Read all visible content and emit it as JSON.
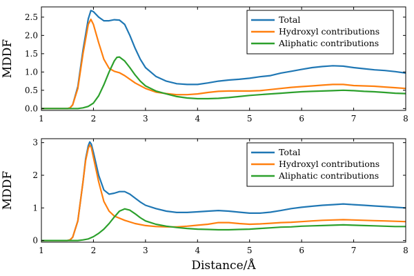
{
  "chart_data": [
    {
      "type": "line",
      "title": "",
      "xlabel": "",
      "ylabel": "MDDF",
      "xlim": [
        1,
        8
      ],
      "ylim": [
        -0.05,
        2.78
      ],
      "xticks": [
        "1",
        "2",
        "3",
        "4",
        "5",
        "6",
        "7",
        "8"
      ],
      "yticks": [
        "0.0",
        "0.5",
        "1.0",
        "1.5",
        "2.0",
        "2.5"
      ],
      "grid": false,
      "legend_position": "top-right",
      "series": [
        {
          "name": "Total",
          "color": "#1f77b4",
          "points": [
            [
              1.0,
              0.0
            ],
            [
              1.5,
              0.0
            ],
            [
              1.55,
              0.02
            ],
            [
              1.6,
              0.1
            ],
            [
              1.7,
              0.6
            ],
            [
              1.8,
              1.6
            ],
            [
              1.9,
              2.45
            ],
            [
              1.95,
              2.68
            ],
            [
              2.0,
              2.65
            ],
            [
              2.1,
              2.5
            ],
            [
              2.2,
              2.4
            ],
            [
              2.3,
              2.4
            ],
            [
              2.4,
              2.43
            ],
            [
              2.5,
              2.42
            ],
            [
              2.6,
              2.3
            ],
            [
              2.7,
              2.0
            ],
            [
              2.8,
              1.65
            ],
            [
              2.9,
              1.35
            ],
            [
              3.0,
              1.12
            ],
            [
              3.2,
              0.88
            ],
            [
              3.4,
              0.75
            ],
            [
              3.6,
              0.68
            ],
            [
              3.8,
              0.66
            ],
            [
              4.0,
              0.66
            ],
            [
              4.2,
              0.7
            ],
            [
              4.4,
              0.75
            ],
            [
              4.6,
              0.78
            ],
            [
              4.8,
              0.8
            ],
            [
              5.0,
              0.83
            ],
            [
              5.2,
              0.87
            ],
            [
              5.4,
              0.9
            ],
            [
              5.6,
              0.97
            ],
            [
              5.8,
              1.02
            ],
            [
              6.0,
              1.07
            ],
            [
              6.2,
              1.12
            ],
            [
              6.4,
              1.15
            ],
            [
              6.6,
              1.17
            ],
            [
              6.8,
              1.16
            ],
            [
              7.0,
              1.12
            ],
            [
              7.2,
              1.09
            ],
            [
              7.4,
              1.06
            ],
            [
              7.6,
              1.04
            ],
            [
              7.8,
              1.01
            ],
            [
              8.0,
              0.97
            ]
          ]
        },
        {
          "name": "Hydroxyl contributions",
          "color": "#ff7f0e",
          "points": [
            [
              1.0,
              0.0
            ],
            [
              1.5,
              0.0
            ],
            [
              1.55,
              0.02
            ],
            [
              1.6,
              0.1
            ],
            [
              1.7,
              0.55
            ],
            [
              1.8,
              1.5
            ],
            [
              1.9,
              2.3
            ],
            [
              1.95,
              2.44
            ],
            [
              2.0,
              2.3
            ],
            [
              2.1,
              1.8
            ],
            [
              2.2,
              1.35
            ],
            [
              2.3,
              1.1
            ],
            [
              2.4,
              1.02
            ],
            [
              2.5,
              0.98
            ],
            [
              2.6,
              0.9
            ],
            [
              2.8,
              0.7
            ],
            [
              3.0,
              0.55
            ],
            [
              3.2,
              0.45
            ],
            [
              3.4,
              0.41
            ],
            [
              3.6,
              0.38
            ],
            [
              3.8,
              0.38
            ],
            [
              4.0,
              0.4
            ],
            [
              4.2,
              0.44
            ],
            [
              4.4,
              0.47
            ],
            [
              4.6,
              0.48
            ],
            [
              4.8,
              0.48
            ],
            [
              5.0,
              0.48
            ],
            [
              5.2,
              0.49
            ],
            [
              5.4,
              0.52
            ],
            [
              5.6,
              0.55
            ],
            [
              5.8,
              0.58
            ],
            [
              6.0,
              0.6
            ],
            [
              6.2,
              0.62
            ],
            [
              6.4,
              0.64
            ],
            [
              6.6,
              0.66
            ],
            [
              6.8,
              0.66
            ],
            [
              7.0,
              0.63
            ],
            [
              7.2,
              0.62
            ],
            [
              7.4,
              0.61
            ],
            [
              7.6,
              0.59
            ],
            [
              7.8,
              0.57
            ],
            [
              8.0,
              0.55
            ]
          ]
        },
        {
          "name": "Aliphatic contributions",
          "color": "#2ca02c",
          "points": [
            [
              1.0,
              0.0
            ],
            [
              1.7,
              0.0
            ],
            [
              1.8,
              0.02
            ],
            [
              1.9,
              0.06
            ],
            [
              2.0,
              0.15
            ],
            [
              2.1,
              0.35
            ],
            [
              2.2,
              0.65
            ],
            [
              2.3,
              1.0
            ],
            [
              2.4,
              1.3
            ],
            [
              2.45,
              1.4
            ],
            [
              2.5,
              1.41
            ],
            [
              2.6,
              1.3
            ],
            [
              2.7,
              1.12
            ],
            [
              2.8,
              0.92
            ],
            [
              2.9,
              0.75
            ],
            [
              3.0,
              0.62
            ],
            [
              3.2,
              0.48
            ],
            [
              3.4,
              0.4
            ],
            [
              3.6,
              0.33
            ],
            [
              3.8,
              0.29
            ],
            [
              4.0,
              0.27
            ],
            [
              4.2,
              0.27
            ],
            [
              4.4,
              0.28
            ],
            [
              4.6,
              0.3
            ],
            [
              4.8,
              0.33
            ],
            [
              5.0,
              0.36
            ],
            [
              5.2,
              0.38
            ],
            [
              5.4,
              0.4
            ],
            [
              5.6,
              0.42
            ],
            [
              5.8,
              0.44
            ],
            [
              6.0,
              0.46
            ],
            [
              6.2,
              0.47
            ],
            [
              6.4,
              0.48
            ],
            [
              6.6,
              0.49
            ],
            [
              6.8,
              0.5
            ],
            [
              7.0,
              0.49
            ],
            [
              7.2,
              0.47
            ],
            [
              7.4,
              0.46
            ],
            [
              7.6,
              0.44
            ],
            [
              7.8,
              0.42
            ],
            [
              8.0,
              0.41
            ]
          ]
        }
      ]
    },
    {
      "type": "line",
      "title": "",
      "xlabel": "Distance/Å",
      "ylabel": "MDDF",
      "xlim": [
        1,
        8
      ],
      "ylim": [
        -0.05,
        3.12
      ],
      "xticks": [
        "1",
        "2",
        "3",
        "4",
        "5",
        "6",
        "7",
        "8"
      ],
      "yticks": [
        "0",
        "1",
        "2",
        "3"
      ],
      "grid": false,
      "legend_position": "top-right",
      "series": [
        {
          "name": "Total",
          "color": "#1f77b4",
          "points": [
            [
              1.0,
              0.0
            ],
            [
              1.5,
              0.0
            ],
            [
              1.55,
              0.02
            ],
            [
              1.6,
              0.1
            ],
            [
              1.7,
              0.6
            ],
            [
              1.8,
              1.8
            ],
            [
              1.85,
              2.5
            ],
            [
              1.9,
              2.9
            ],
            [
              1.93,
              3.02
            ],
            [
              1.96,
              2.95
            ],
            [
              2.0,
              2.7
            ],
            [
              2.1,
              2.0
            ],
            [
              2.2,
              1.55
            ],
            [
              2.3,
              1.42
            ],
            [
              2.4,
              1.45
            ],
            [
              2.5,
              1.5
            ],
            [
              2.6,
              1.5
            ],
            [
              2.7,
              1.42
            ],
            [
              2.8,
              1.3
            ],
            [
              2.9,
              1.18
            ],
            [
              3.0,
              1.08
            ],
            [
              3.2,
              0.98
            ],
            [
              3.4,
              0.9
            ],
            [
              3.6,
              0.86
            ],
            [
              3.8,
              0.86
            ],
            [
              4.0,
              0.88
            ],
            [
              4.2,
              0.9
            ],
            [
              4.4,
              0.92
            ],
            [
              4.6,
              0.9
            ],
            [
              4.8,
              0.87
            ],
            [
              5.0,
              0.84
            ],
            [
              5.2,
              0.84
            ],
            [
              5.4,
              0.87
            ],
            [
              5.6,
              0.92
            ],
            [
              5.8,
              0.98
            ],
            [
              6.0,
              1.02
            ],
            [
              6.2,
              1.05
            ],
            [
              6.4,
              1.08
            ],
            [
              6.6,
              1.1
            ],
            [
              6.8,
              1.12
            ],
            [
              7.0,
              1.1
            ],
            [
              7.2,
              1.08
            ],
            [
              7.4,
              1.06
            ],
            [
              7.6,
              1.04
            ],
            [
              7.8,
              1.02
            ],
            [
              8.0,
              1.0
            ]
          ]
        },
        {
          "name": "Hydroxyl contributions",
          "color": "#ff7f0e",
          "points": [
            [
              1.0,
              0.0
            ],
            [
              1.5,
              0.0
            ],
            [
              1.55,
              0.02
            ],
            [
              1.6,
              0.1
            ],
            [
              1.7,
              0.6
            ],
            [
              1.8,
              1.8
            ],
            [
              1.85,
              2.45
            ],
            [
              1.9,
              2.82
            ],
            [
              1.93,
              2.93
            ],
            [
              1.96,
              2.85
            ],
            [
              2.0,
              2.55
            ],
            [
              2.1,
              1.8
            ],
            [
              2.2,
              1.2
            ],
            [
              2.3,
              0.9
            ],
            [
              2.4,
              0.75
            ],
            [
              2.6,
              0.62
            ],
            [
              2.8,
              0.52
            ],
            [
              3.0,
              0.46
            ],
            [
              3.2,
              0.43
            ],
            [
              3.4,
              0.42
            ],
            [
              3.6,
              0.42
            ],
            [
              3.8,
              0.44
            ],
            [
              4.0,
              0.47
            ],
            [
              4.2,
              0.5
            ],
            [
              4.4,
              0.55
            ],
            [
              4.6,
              0.55
            ],
            [
              4.8,
              0.52
            ],
            [
              5.0,
              0.5
            ],
            [
              5.2,
              0.51
            ],
            [
              5.4,
              0.53
            ],
            [
              5.6,
              0.55
            ],
            [
              5.8,
              0.56
            ],
            [
              6.0,
              0.58
            ],
            [
              6.2,
              0.6
            ],
            [
              6.4,
              0.62
            ],
            [
              6.6,
              0.63
            ],
            [
              6.8,
              0.64
            ],
            [
              7.0,
              0.63
            ],
            [
              7.2,
              0.62
            ],
            [
              7.4,
              0.61
            ],
            [
              7.6,
              0.6
            ],
            [
              7.8,
              0.59
            ],
            [
              8.0,
              0.58
            ]
          ]
        },
        {
          "name": "Aliphatic contributions",
          "color": "#2ca02c",
          "points": [
            [
              1.0,
              0.0
            ],
            [
              1.7,
              0.0
            ],
            [
              1.8,
              0.02
            ],
            [
              1.9,
              0.05
            ],
            [
              2.0,
              0.12
            ],
            [
              2.1,
              0.22
            ],
            [
              2.2,
              0.35
            ],
            [
              2.3,
              0.52
            ],
            [
              2.4,
              0.72
            ],
            [
              2.5,
              0.9
            ],
            [
              2.6,
              0.97
            ],
            [
              2.7,
              0.93
            ],
            [
              2.8,
              0.82
            ],
            [
              2.9,
              0.7
            ],
            [
              3.0,
              0.6
            ],
            [
              3.2,
              0.5
            ],
            [
              3.4,
              0.44
            ],
            [
              3.6,
              0.4
            ],
            [
              3.8,
              0.37
            ],
            [
              4.0,
              0.35
            ],
            [
              4.2,
              0.34
            ],
            [
              4.4,
              0.33
            ],
            [
              4.6,
              0.33
            ],
            [
              4.8,
              0.34
            ],
            [
              5.0,
              0.35
            ],
            [
              5.2,
              0.37
            ],
            [
              5.4,
              0.39
            ],
            [
              5.6,
              0.41
            ],
            [
              5.8,
              0.42
            ],
            [
              6.0,
              0.44
            ],
            [
              6.2,
              0.45
            ],
            [
              6.4,
              0.46
            ],
            [
              6.6,
              0.47
            ],
            [
              6.8,
              0.48
            ],
            [
              7.0,
              0.47
            ],
            [
              7.2,
              0.46
            ],
            [
              7.4,
              0.45
            ],
            [
              7.6,
              0.44
            ],
            [
              7.8,
              0.43
            ],
            [
              8.0,
              0.43
            ]
          ]
        }
      ]
    }
  ]
}
